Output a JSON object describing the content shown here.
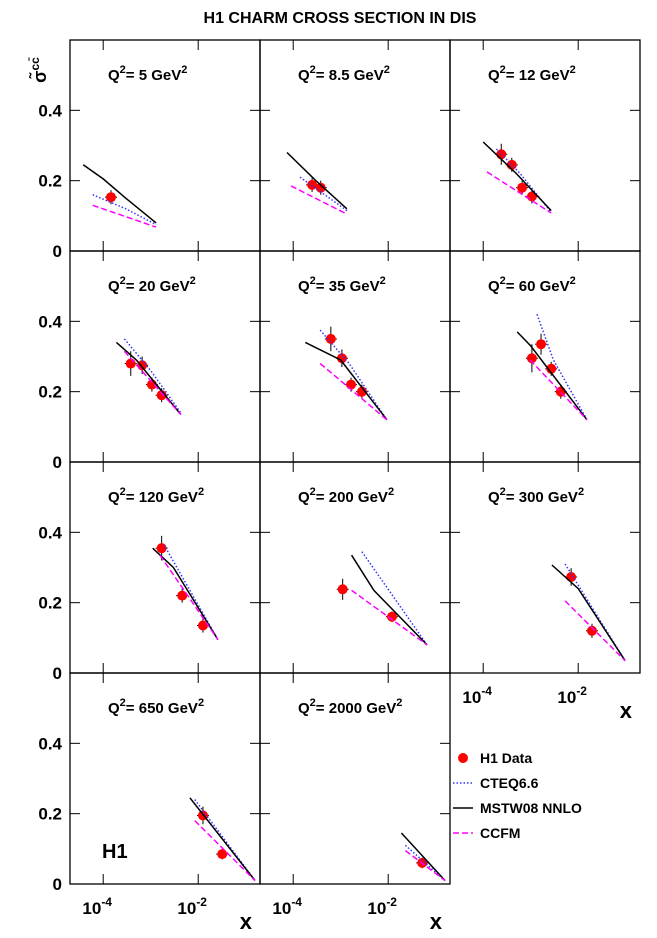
{
  "title": "H1 CHARM CROSS SECTION IN DIS",
  "y_label": [
    "σ̃",
    "cc̄"
  ],
  "chart_data": [
    {
      "type": "line",
      "label": [
        "Q",
        "2",
        "= 5 GeV",
        "2"
      ],
      "xscale": "log",
      "xlim": [
        2e-05,
        0.2
      ],
      "ylim": [
        0,
        0.6
      ],
      "yticks": [
        0,
        0.2,
        0.4
      ],
      "xticks": [
        {
          "value": 0.0001,
          "label": "10",
          "exponent": "-4"
        },
        {
          "value": 0.01,
          "label": "10",
          "exponent": "-2"
        }
      ],
      "series": [
        {
          "name": "H1 Data",
          "color": "#ff0000",
          "style": "points",
          "x": [
            0.000146
          ],
          "values": [
            0.153
          ],
          "errors": [
            0.02
          ]
        },
        {
          "name": "CTEQ6.6",
          "color": "#3333ff",
          "style": "dotted",
          "x": [
            6e-05,
            0.0003,
            0.0013
          ],
          "values": [
            0.16,
            0.12,
            0.075
          ]
        },
        {
          "name": "MSTW08 NNLO",
          "color": "#000000",
          "style": "solid",
          "x": [
            3.8e-05,
            0.0001,
            0.0003,
            0.0013
          ],
          "values": [
            0.245,
            0.205,
            0.15,
            0.08
          ]
        },
        {
          "name": "CCFM",
          "color": "#ff00ff",
          "style": "dashed",
          "x": [
            6e-05,
            0.0013
          ],
          "values": [
            0.13,
            0.068
          ]
        }
      ]
    },
    {
      "type": "line",
      "label": [
        "Q",
        "2",
        "= 8.5 GeV",
        "2"
      ],
      "xscale": "log",
      "xlim": [
        2e-05,
        0.2
      ],
      "ylim": [
        0,
        0.6
      ],
      "yticks": [
        0,
        0.2,
        0.4
      ],
      "xticks": [
        {
          "value": 0.0001,
          "label": "10",
          "exponent": "-4"
        },
        {
          "value": 0.01,
          "label": "10",
          "exponent": "-2"
        }
      ],
      "series": [
        {
          "name": "H1 Data",
          "color": "#ff0000",
          "style": "points",
          "x": [
            0.00025,
            0.00038
          ],
          "values": [
            0.188,
            0.18
          ],
          "errors": [
            0.02,
            0.02
          ]
        },
        {
          "name": "CTEQ6.6",
          "color": "#3333ff",
          "style": "dotted",
          "x": [
            0.00014,
            0.00135
          ],
          "values": [
            0.21,
            0.115
          ]
        },
        {
          "name": "MSTW08 NNLO",
          "color": "#000000",
          "style": "solid",
          "x": [
            7.4e-05,
            0.0003,
            0.00135
          ],
          "values": [
            0.28,
            0.2,
            0.12
          ]
        },
        {
          "name": "CCFM",
          "color": "#ff00ff",
          "style": "dashed",
          "x": [
            9e-05,
            0.00135
          ],
          "values": [
            0.185,
            0.105
          ]
        }
      ]
    },
    {
      "type": "line",
      "label": [
        "Q",
        "2",
        "= 12 GeV",
        "2"
      ],
      "xscale": "log",
      "xlim": [
        2e-05,
        0.2
      ],
      "ylim": [
        0,
        0.6
      ],
      "yticks": [
        0,
        0.2,
        0.4
      ],
      "xticks": [
        {
          "value": 0.0001,
          "label": "10",
          "exponent": "-4"
        },
        {
          "value": 0.01,
          "label": "10",
          "exponent": "-2"
        }
      ],
      "series": [
        {
          "name": "H1 Data",
          "color": "#ff0000",
          "style": "points",
          "x": [
            0.00024,
            0.0004,
            0.00066,
            0.00106
          ],
          "values": [
            0.275,
            0.245,
            0.18,
            0.155
          ],
          "errors": [
            0.03,
            0.02,
            0.02,
            0.02
          ]
        },
        {
          "name": "CTEQ6.6",
          "color": "#3333ff",
          "style": "dotted",
          "x": [
            0.00019,
            0.0006,
            0.0027
          ],
          "values": [
            0.29,
            0.22,
            0.11
          ]
        },
        {
          "name": "MSTW08 NNLO",
          "color": "#000000",
          "style": "solid",
          "x": [
            0.0001,
            0.0005,
            0.0027
          ],
          "values": [
            0.31,
            0.22,
            0.115
          ]
        },
        {
          "name": "CCFM",
          "color": "#ff00ff",
          "style": "dashed",
          "x": [
            0.00012,
            0.0027
          ],
          "values": [
            0.225,
            0.108
          ]
        }
      ]
    },
    {
      "type": "line",
      "label": [
        "Q",
        "2",
        "= 20 GeV",
        "2"
      ],
      "xscale": "log",
      "xlim": [
        2e-05,
        0.2
      ],
      "ylim": [
        0,
        0.6
      ],
      "yticks": [
        0,
        0.2,
        0.4
      ],
      "xticks": [
        {
          "value": 0.0001,
          "label": "10",
          "exponent": "-4"
        },
        {
          "value": 0.01,
          "label": "10",
          "exponent": "-2"
        }
      ],
      "series": [
        {
          "name": "H1 Data",
          "color": "#ff0000",
          "style": "points",
          "x": [
            0.00038,
            0.00066,
            0.00106,
            0.0017
          ],
          "values": [
            0.28,
            0.275,
            0.22,
            0.19
          ],
          "errors": [
            0.035,
            0.025,
            0.02,
            0.02
          ]
        },
        {
          "name": "CTEQ6.6",
          "color": "#3333ff",
          "style": "dotted",
          "x": [
            0.00028,
            0.001,
            0.0043
          ],
          "values": [
            0.35,
            0.26,
            0.14
          ]
        },
        {
          "name": "MSTW08 NNLO",
          "color": "#000000",
          "style": "solid",
          "x": [
            0.00019,
            0.0005,
            0.0043
          ],
          "values": [
            0.34,
            0.29,
            0.135
          ]
        },
        {
          "name": "CCFM",
          "color": "#ff00ff",
          "style": "dashed",
          "x": [
            0.00028,
            0.0043
          ],
          "values": [
            0.315,
            0.135
          ]
        }
      ]
    },
    {
      "type": "line",
      "label": [
        "Q",
        "2",
        "= 35 GeV",
        "2"
      ],
      "xscale": "log",
      "xlim": [
        2e-05,
        0.2
      ],
      "ylim": [
        0,
        0.6
      ],
      "yticks": [
        0,
        0.2,
        0.4
      ],
      "xticks": [
        {
          "value": 0.0001,
          "label": "10",
          "exponent": "-4"
        },
        {
          "value": 0.01,
          "label": "10",
          "exponent": "-2"
        }
      ],
      "series": [
        {
          "name": "H1 Data",
          "color": "#ff0000",
          "style": "points",
          "x": [
            0.00062,
            0.00106,
            0.00165,
            0.0028
          ],
          "values": [
            0.35,
            0.295,
            0.22,
            0.2
          ],
          "errors": [
            0.035,
            0.025,
            0.02,
            0.02
          ]
        },
        {
          "name": "CTEQ6.6",
          "color": "#3333ff",
          "style": "dotted",
          "x": [
            0.00037,
            0.0015,
            0.0094
          ],
          "values": [
            0.375,
            0.28,
            0.12
          ]
        },
        {
          "name": "MSTW08 NNLO",
          "color": "#000000",
          "style": "solid",
          "x": [
            0.00018,
            0.001,
            0.0094
          ],
          "values": [
            0.34,
            0.29,
            0.12
          ]
        },
        {
          "name": "CCFM",
          "color": "#ff00ff",
          "style": "dashed",
          "x": [
            0.00037,
            0.0094
          ],
          "values": [
            0.28,
            0.12
          ]
        }
      ]
    },
    {
      "type": "line",
      "label": [
        "Q",
        "2",
        "= 60 GeV",
        "2"
      ],
      "xscale": "log",
      "xlim": [
        2e-05,
        0.2
      ],
      "ylim": [
        0,
        0.6
      ],
      "yticks": [
        0,
        0.2,
        0.4
      ],
      "xticks": [
        {
          "value": 0.0001,
          "label": "10",
          "exponent": "-4"
        },
        {
          "value": 0.01,
          "label": "10",
          "exponent": "-2"
        }
      ],
      "series": [
        {
          "name": "H1 Data",
          "color": "#ff0000",
          "style": "points",
          "x": [
            0.00106,
            0.00165,
            0.0027,
            0.0043
          ],
          "values": [
            0.295,
            0.335,
            0.265,
            0.2
          ],
          "errors": [
            0.04,
            0.03,
            0.02,
            0.02
          ]
        },
        {
          "name": "CTEQ6.6",
          "color": "#3333ff",
          "style": "dotted",
          "x": [
            0.00136,
            0.003,
            0.0153
          ],
          "values": [
            0.42,
            0.29,
            0.12
          ]
        },
        {
          "name": "MSTW08 NNLO",
          "color": "#000000",
          "style": "solid",
          "x": [
            0.00052,
            0.001,
            0.0153
          ],
          "values": [
            0.37,
            0.33,
            0.12
          ]
        },
        {
          "name": "CCFM",
          "color": "#ff00ff",
          "style": "dashed",
          "x": [
            0.00097,
            0.0153
          ],
          "values": [
            0.29,
            0.12
          ]
        }
      ]
    },
    {
      "type": "line",
      "label": [
        "Q",
        "2",
        "= 120 GeV",
        "2"
      ],
      "xscale": "log",
      "xlim": [
        2e-05,
        0.2
      ],
      "ylim": [
        0,
        0.6
      ],
      "yticks": [
        0,
        0.2,
        0.4
      ],
      "xticks": [
        {
          "value": 0.0001,
          "label": "10",
          "exponent": "-4"
        },
        {
          "value": 0.01,
          "label": "10",
          "exponent": "-2"
        }
      ],
      "series": [
        {
          "name": "H1 Data",
          "color": "#ff0000",
          "style": "points",
          "x": [
            0.0017,
            0.0046,
            0.0126
          ],
          "values": [
            0.355,
            0.22,
            0.135
          ],
          "errors": [
            0.035,
            0.02,
            0.02
          ]
        },
        {
          "name": "CTEQ6.6",
          "color": "#3333ff",
          "style": "dotted",
          "x": [
            0.0019,
            0.026
          ],
          "values": [
            0.365,
            0.095
          ]
        },
        {
          "name": "MSTW08 NNLO",
          "color": "#000000",
          "style": "solid",
          "x": [
            0.0011,
            0.003,
            0.026
          ],
          "values": [
            0.355,
            0.3,
            0.095
          ]
        },
        {
          "name": "CCFM",
          "color": "#ff00ff",
          "style": "dashed",
          "x": [
            0.00157,
            0.026
          ],
          "values": [
            0.335,
            0.095
          ]
        }
      ]
    },
    {
      "type": "line",
      "label": [
        "Q",
        "2",
        "= 200 GeV",
        "2"
      ],
      "xscale": "log",
      "xlim": [
        2e-05,
        0.2
      ],
      "ylim": [
        0,
        0.6
      ],
      "yticks": [
        0,
        0.2,
        0.4
      ],
      "xticks": [
        {
          "value": 0.0001,
          "label": "10",
          "exponent": "-4"
        },
        {
          "value": 0.01,
          "label": "10",
          "exponent": "-2"
        }
      ],
      "series": [
        {
          "name": "H1 Data",
          "color": "#ff0000",
          "style": "points",
          "x": [
            0.0011,
            0.012
          ],
          "values": [
            0.238,
            0.16
          ],
          "errors": [
            0.03,
            0.015
          ]
        },
        {
          "name": "CTEQ6.6",
          "color": "#3333ff",
          "style": "dotted",
          "x": [
            0.0028,
            0.066
          ],
          "values": [
            0.345,
            0.08
          ]
        },
        {
          "name": "MSTW08 NNLO",
          "color": "#000000",
          "style": "solid",
          "x": [
            0.0017,
            0.005,
            0.066
          ],
          "values": [
            0.335,
            0.235,
            0.08
          ]
        },
        {
          "name": "CCFM",
          "color": "#ff00ff",
          "style": "dashed",
          "x": [
            0.0017,
            0.066
          ],
          "values": [
            0.235,
            0.08
          ]
        }
      ]
    },
    {
      "type": "line",
      "label": [
        "Q",
        "2",
        "= 300 GeV",
        "2"
      ],
      "xscale": "log",
      "xlim": [
        2e-05,
        0.2
      ],
      "ylim": [
        0,
        0.6
      ],
      "yticks": [
        0,
        0.2,
        0.4
      ],
      "xticks": [
        {
          "value": 0.0001,
          "label": "10",
          "exponent": "-4"
        },
        {
          "value": 0.01,
          "label": "10",
          "exponent": "-2"
        }
      ],
      "x_label": "x",
      "series": [
        {
          "name": "H1 Data",
          "color": "#ff0000",
          "style": "points",
          "x": [
            0.0071,
            0.0195
          ],
          "values": [
            0.273,
            0.12
          ],
          "errors": [
            0.025,
            0.02
          ]
        },
        {
          "name": "CTEQ6.6",
          "color": "#3333ff",
          "style": "dotted",
          "x": [
            0.0053,
            0.097
          ],
          "values": [
            0.31,
            0.035
          ]
        },
        {
          "name": "MSTW08 NNLO",
          "color": "#000000",
          "style": "solid",
          "x": [
            0.0028,
            0.01,
            0.097
          ],
          "values": [
            0.307,
            0.24,
            0.035
          ]
        },
        {
          "name": "CCFM",
          "color": "#ff00ff",
          "style": "dashed",
          "x": [
            0.0053,
            0.097
          ],
          "values": [
            0.205,
            0.035
          ]
        }
      ]
    },
    {
      "type": "line",
      "label": [
        "Q",
        "2",
        "= 650 GeV",
        "2"
      ],
      "xscale": "log",
      "xlim": [
        2e-05,
        0.2
      ],
      "ylim": [
        0,
        0.6
      ],
      "yticks": [
        0,
        0.2,
        0.4
      ],
      "xticks": [
        {
          "value": 0.0001,
          "label": "10",
          "exponent": "-4"
        },
        {
          "value": 0.01,
          "label": "10",
          "exponent": "-2"
        }
      ],
      "x_label": "x",
      "annotation": "H1",
      "series": [
        {
          "name": "H1 Data",
          "color": "#ff0000",
          "style": "points",
          "x": [
            0.0126,
            0.032
          ],
          "values": [
            0.195,
            0.085
          ],
          "errors": [
            0.025,
            0.015
          ]
        },
        {
          "name": "CTEQ6.6",
          "color": "#3333ff",
          "style": "dotted",
          "x": [
            0.0085,
            0.157
          ],
          "values": [
            0.24,
            0.01
          ]
        },
        {
          "name": "MSTW08 NNLO",
          "color": "#000000",
          "style": "solid",
          "x": [
            0.0067,
            0.157
          ],
          "values": [
            0.245,
            0.01
          ]
        },
        {
          "name": "CCFM",
          "color": "#ff00ff",
          "style": "dashed",
          "x": [
            0.0085,
            0.157
          ],
          "values": [
            0.18,
            0.01
          ]
        }
      ]
    },
    {
      "type": "line",
      "label": [
        "Q",
        "2",
        "= 2000 GeV",
        "2"
      ],
      "xscale": "log",
      "xlim": [
        2e-05,
        0.2
      ],
      "ylim": [
        0,
        0.6
      ],
      "yticks": [
        0,
        0.2,
        0.4
      ],
      "xticks": [
        {
          "value": 0.0001,
          "label": "10",
          "exponent": "-4"
        },
        {
          "value": 0.01,
          "label": "10",
          "exponent": "-2"
        }
      ],
      "x_label": "x",
      "series": [
        {
          "name": "H1 Data",
          "color": "#ff0000",
          "style": "points",
          "x": [
            0.052
          ],
          "values": [
            0.06
          ],
          "errors": [
            0.015
          ]
        },
        {
          "name": "CTEQ6.6",
          "color": "#3333ff",
          "style": "dotted",
          "x": [
            0.023,
            0.157
          ],
          "values": [
            0.11,
            0.01
          ]
        },
        {
          "name": "MSTW08 NNLO",
          "color": "#000000",
          "style": "solid",
          "x": [
            0.019,
            0.157
          ],
          "values": [
            0.145,
            0.01
          ]
        },
        {
          "name": "CCFM",
          "color": "#ff00ff",
          "style": "dashed",
          "x": [
            0.023,
            0.157
          ],
          "values": [
            0.095,
            0.01
          ]
        }
      ]
    }
  ]
}
